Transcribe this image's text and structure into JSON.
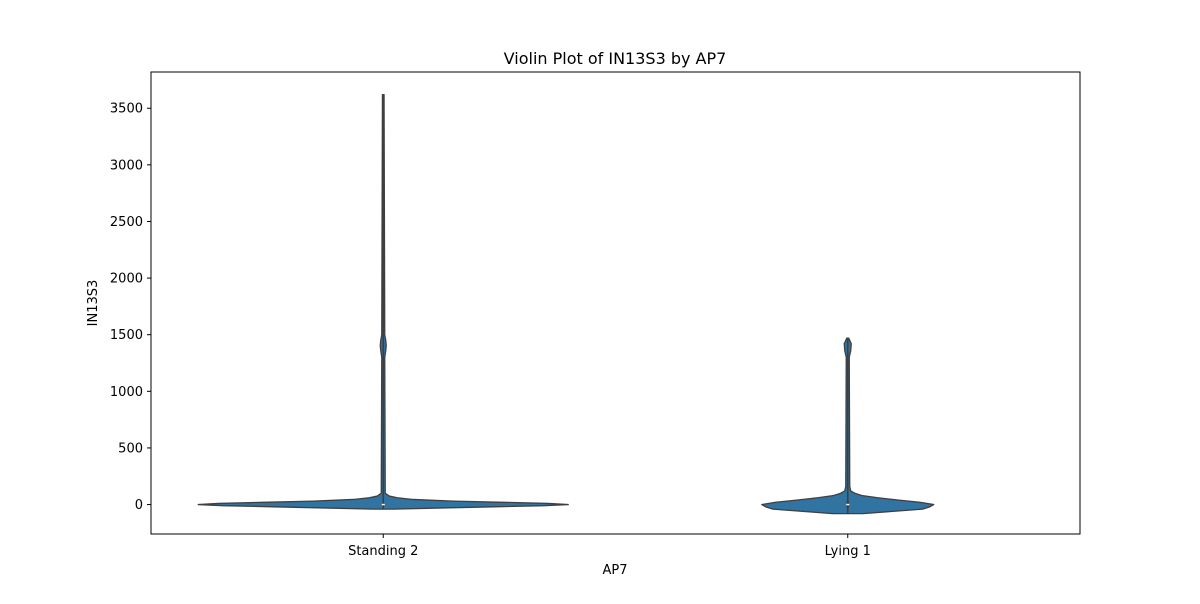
{
  "chart_data": {
    "type": "violin",
    "title": "Violin Plot of IN13S3 by AP7",
    "xlabel": "AP7",
    "ylabel": "IN13S3",
    "categories": [
      "Standing 2",
      "Lying 1"
    ],
    "ylim": [
      -260,
      3820
    ],
    "yticks": [
      0,
      500,
      1000,
      1500,
      2000,
      2500,
      3000,
      3500
    ],
    "grid": false,
    "legend": "none",
    "violin_color": "#3274a1",
    "edge_color": "#3f3f3f",
    "series": [
      {
        "category": "Standing 2",
        "min": -40,
        "max": 3620,
        "median": 0,
        "q1": -10,
        "q3": 10,
        "density_profile": [
          {
            "y": -40,
            "half_width": 10
          },
          {
            "y": -30,
            "half_width": 60
          },
          {
            "y": -20,
            "half_width": 110
          },
          {
            "y": -10,
            "half_width": 160
          },
          {
            "y": 0,
            "half_width": 185
          },
          {
            "y": 10,
            "half_width": 165
          },
          {
            "y": 20,
            "half_width": 120
          },
          {
            "y": 30,
            "half_width": 70
          },
          {
            "y": 45,
            "half_width": 30
          },
          {
            "y": 60,
            "half_width": 14
          },
          {
            "y": 75,
            "half_width": 6
          },
          {
            "y": 100,
            "half_width": 2
          },
          {
            "y": 1300,
            "half_width": 1.5
          },
          {
            "y": 1360,
            "half_width": 2.5
          },
          {
            "y": 1405,
            "half_width": 3
          },
          {
            "y": 1450,
            "half_width": 2.5
          },
          {
            "y": 1500,
            "half_width": 1.5
          },
          {
            "y": 3620,
            "half_width": 0.8
          }
        ]
      },
      {
        "category": "Lying 1",
        "min": -80,
        "max": 1470,
        "median": 0,
        "q1": -30,
        "q3": 30,
        "density_profile": [
          {
            "y": -80,
            "half_width": 15
          },
          {
            "y": -60,
            "half_width": 45
          },
          {
            "y": -40,
            "half_width": 75
          },
          {
            "y": -20,
            "half_width": 82
          },
          {
            "y": 0,
            "half_width": 86
          },
          {
            "y": 20,
            "half_width": 72
          },
          {
            "y": 40,
            "half_width": 50
          },
          {
            "y": 60,
            "half_width": 30
          },
          {
            "y": 80,
            "half_width": 14
          },
          {
            "y": 100,
            "half_width": 7
          },
          {
            "y": 120,
            "half_width": 3
          },
          {
            "y": 160,
            "half_width": 2
          },
          {
            "y": 1300,
            "half_width": 1.5
          },
          {
            "y": 1360,
            "half_width": 3
          },
          {
            "y": 1420,
            "half_width": 3.5
          },
          {
            "y": 1470,
            "half_width": 1
          }
        ]
      }
    ]
  }
}
